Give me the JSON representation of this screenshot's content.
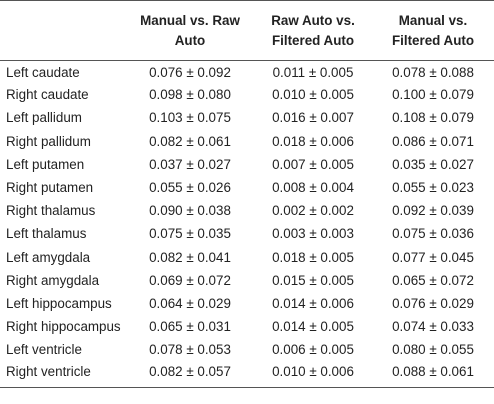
{
  "table": {
    "headers": [
      "",
      "Manual vs. Raw Auto",
      "Raw Auto vs. Filtered Auto",
      "Manual vs. Filtered Auto"
    ],
    "rows": [
      {
        "label": "Left caudate",
        "values": [
          "0.076 ± 0.092",
          "0.011 ± 0.005",
          "0.078 ± 0.088"
        ]
      },
      {
        "label": "Right caudate",
        "values": [
          "0.098 ± 0.080",
          "0.010 ± 0.005",
          "0.100 ± 0.079"
        ]
      },
      {
        "label": "Left pallidum",
        "values": [
          "0.103 ± 0.075",
          "0.016 ± 0.007",
          "0.108 ± 0.079"
        ]
      },
      {
        "label": "Right pallidum",
        "values": [
          "0.082 ± 0.061",
          "0.018 ± 0.006",
          "0.086 ± 0.071"
        ]
      },
      {
        "label": "Left putamen",
        "values": [
          "0.037 ± 0.027",
          "0.007 ± 0.005",
          "0.035 ± 0.027"
        ]
      },
      {
        "label": "Right putamen",
        "values": [
          "0.055 ± 0.026",
          "0.008 ± 0.004",
          "0.055 ± 0.023"
        ]
      },
      {
        "label": "Right thalamus",
        "values": [
          "0.090 ± 0.038",
          "0.002 ± 0.002",
          "0.092 ± 0.039"
        ]
      },
      {
        "label": "Left thalamus",
        "values": [
          "0.075 ± 0.035",
          "0.003 ± 0.003",
          "0.075 ± 0.036"
        ]
      },
      {
        "label": "Left amygdala",
        "values": [
          "0.082 ± 0.041",
          "0.018 ± 0.005",
          "0.077 ± 0.045"
        ]
      },
      {
        "label": "Right amygdala",
        "values": [
          "0.069 ± 0.072",
          "0.015 ± 0.005",
          "0.065 ± 0.072"
        ]
      },
      {
        "label": "Left hippocampus",
        "values": [
          "0.064 ± 0.029",
          "0.014 ± 0.006",
          "0.076 ± 0.029"
        ]
      },
      {
        "label": "Right hippocampus",
        "values": [
          "0.065 ± 0.031",
          "0.014 ± 0.005",
          "0.074 ± 0.033"
        ]
      },
      {
        "label": "Left ventricle",
        "values": [
          "0.078 ± 0.053",
          "0.006 ± 0.005",
          "0.080 ± 0.055"
        ]
      },
      {
        "label": "Right ventricle",
        "values": [
          "0.082 ± 0.057",
          "0.010 ± 0.006",
          "0.088 ± 0.061"
        ]
      }
    ]
  },
  "colors": {
    "text": "#222222",
    "rule": "#555555",
    "background": "#ffffff"
  }
}
